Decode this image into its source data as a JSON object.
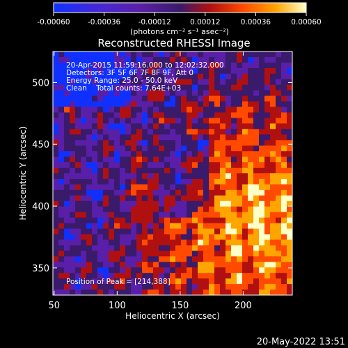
{
  "chart_data": {
    "type": "heatmap",
    "title": "Reconstructed RHESSI Image",
    "xlabel": "Heliocentric X (arcsec)",
    "ylabel": "Heliocentric Y (arcsec)",
    "xlim": [
      49,
      239
    ],
    "ylim": [
      328,
      525
    ],
    "xticks": [
      50,
      100,
      150,
      200
    ],
    "yticks": [
      350,
      400,
      450,
      500
    ],
    "colorbar": {
      "ticks": [
        "-0.00060",
        "-0.00036",
        "-0.00012",
        "0.00012",
        "0.00036",
        "0.00060"
      ],
      "unit": "(photons cm⁻² s⁻¹ asec⁻²)",
      "range": [
        -0.0006,
        0.0006
      ],
      "colors": [
        "#1030ff",
        "#5a1fa8",
        "#3a1a6a",
        "#b01010",
        "#ff4a00",
        "#ffa500",
        "#ffffc8"
      ]
    },
    "annotations": {
      "line1": "20-Apr-2015 11:59:16.000 to 12:02:32.000",
      "line2": "Detectors: 3F 5F 6F 7F 8F 9F, Att 0",
      "line3": "Energy Range: 25.0 - 50.0 keV",
      "line4": "Clean    Total counts: 7.64E+03",
      "peak": "Position of Peak = [214,388]"
    },
    "peak_position": [
      214,
      388
    ],
    "grid": false
  },
  "footer": {
    "timestamp": "20-May-2022 13:51"
  }
}
